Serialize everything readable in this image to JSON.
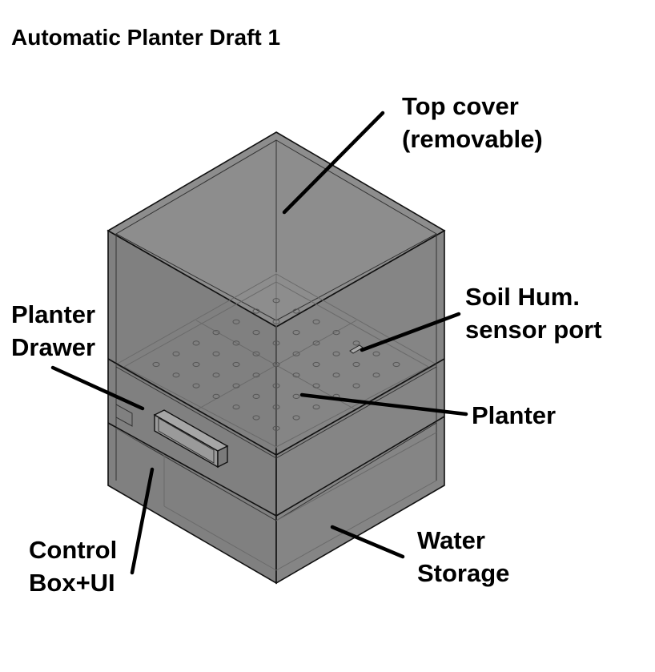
{
  "title": "Automatic Planter Draft 1",
  "colors": {
    "body_fill": "#858585",
    "top_fill": "#8e8e8e",
    "side_fill": "#7c7c7c",
    "edge": "#111111",
    "background": "#ffffff"
  },
  "labels": {
    "top_cover": [
      "Top cover",
      "(removable)"
    ],
    "soil_sensor": [
      "Soil Hum.",
      "sensor port"
    ],
    "planter_drawer": [
      "Planter",
      "Drawer"
    ],
    "planter": [
      "Planter"
    ],
    "control_box": [
      "Control",
      "Box+UI"
    ],
    "water_storage": [
      "Water",
      "Storage"
    ]
  }
}
